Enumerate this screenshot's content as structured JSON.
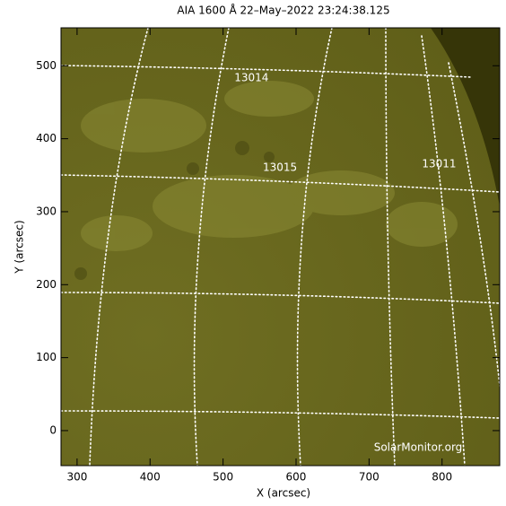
{
  "chart_data": {
    "type": "image",
    "title": "AIA 1600 Å 22–May–2022 23:24:38.125",
    "x_label": "X (arcsec)",
    "y_label": "Y (arcsec)",
    "xlim": [
      278,
      879
    ],
    "ylim": [
      -48,
      552
    ],
    "xticks": [
      300,
      400,
      500,
      600,
      700,
      800
    ],
    "yticks": [
      0,
      100,
      200,
      300,
      400,
      500
    ],
    "annotations": [
      {
        "text": "13014",
        "x": 539,
        "y": 483
      },
      {
        "text": "13015",
        "x": 578,
        "y": 360
      },
      {
        "text": "13011",
        "x": 796,
        "y": 365
      }
    ],
    "watermark": "SolarMonitor.org"
  }
}
